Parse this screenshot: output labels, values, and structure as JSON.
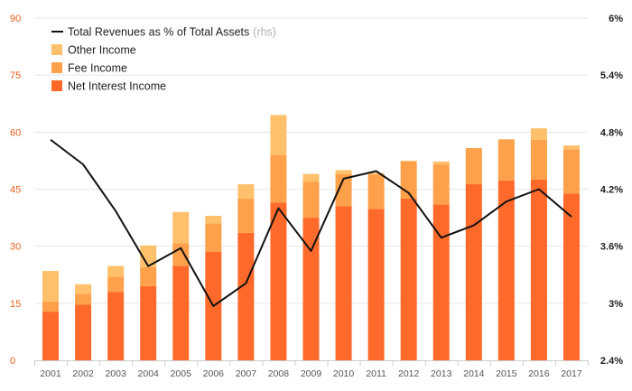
{
  "chart_data": {
    "type": "bar",
    "stacked": true,
    "categories": [
      "2001",
      "2002",
      "2003",
      "2004",
      "2005",
      "2006",
      "2007",
      "2008",
      "2009",
      "2010",
      "2011",
      "2012",
      "2013",
      "2014",
      "2015",
      "2016",
      "2017"
    ],
    "series": [
      {
        "name": "Net Interest Income",
        "color": "#ff6a2b",
        "values": [
          12.8,
          14.6,
          18.0,
          19.5,
          24.8,
          28.5,
          33.5,
          41.5,
          37.5,
          40.5,
          39.8,
          42.5,
          41.0,
          46.3,
          47.3,
          47.5,
          43.8
        ]
      },
      {
        "name": "Fee Income",
        "color": "#ffa04a",
        "values": [
          2.7,
          2.9,
          4.0,
          5.0,
          6.0,
          7.5,
          9.0,
          12.5,
          9.5,
          8.5,
          9.0,
          9.8,
          10.5,
          9.5,
          10.8,
          10.5,
          11.7
        ]
      },
      {
        "name": "Other Income",
        "color": "#ffc06b",
        "values": [
          8.0,
          2.5,
          2.8,
          5.7,
          8.2,
          2.0,
          3.8,
          10.5,
          2.0,
          1.0,
          0.5,
          0.2,
          0.8,
          0.0,
          0.0,
          3.0,
          1.0
        ]
      }
    ],
    "line_series": {
      "name": "Total Revenues as % of Total Assets",
      "name_note": "(rhs)",
      "color": "#111111",
      "values": [
        4.72,
        4.46,
        3.97,
        3.39,
        3.58,
        2.97,
        3.21,
        4.0,
        3.55,
        4.31,
        4.39,
        4.16,
        3.69,
        3.82,
        4.07,
        4.2,
        3.91
      ]
    },
    "y_left": {
      "ylim": [
        0,
        90
      ],
      "ticks": [
        "0",
        "15",
        "30",
        "45",
        "60",
        "75",
        "90"
      ],
      "tick_values": [
        0,
        15,
        30,
        45,
        60,
        75,
        90
      ],
      "color": "#e8601c"
    },
    "y_right": {
      "ylim": [
        2.4,
        6.0
      ],
      "ticks": [
        "2.4%",
        "3%",
        "3.6%",
        "4.2%",
        "4.8%",
        "5.4%",
        "6%"
      ],
      "tick_values": [
        2.4,
        3.0,
        3.6,
        4.2,
        4.8,
        5.4,
        6.0
      ]
    },
    "legend_position": "top-left",
    "grid": true,
    "title": "",
    "xlabel": "",
    "ylabel": ""
  }
}
